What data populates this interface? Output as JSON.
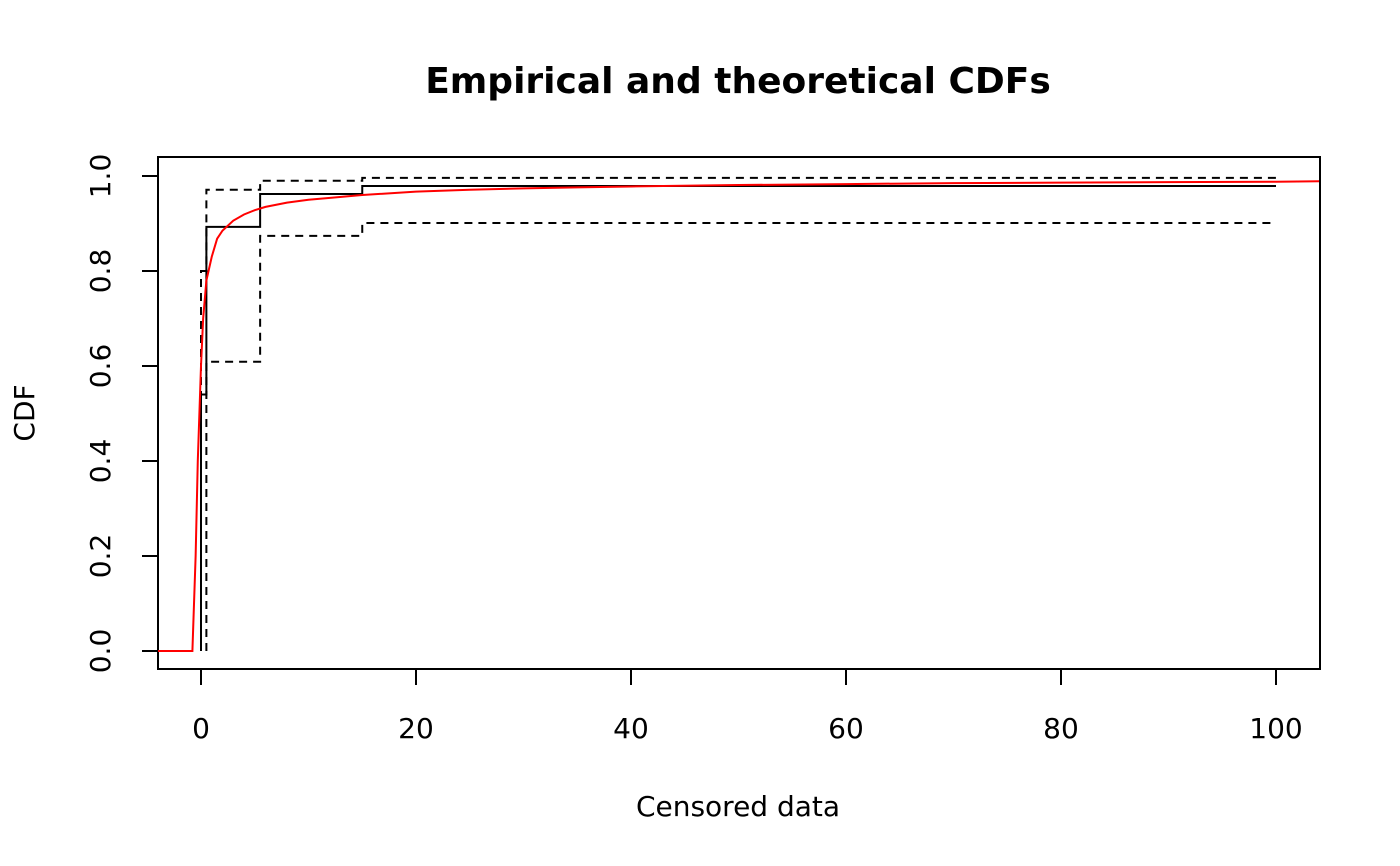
{
  "chart_data": {
    "type": "line",
    "title": "Empirical and theoretical CDFs",
    "xlabel": "Censored data",
    "ylabel": "CDF",
    "xlim": [
      -4,
      104
    ],
    "ylim": [
      -0.04,
      1.04
    ],
    "grid": false,
    "x_ticks": [
      0,
      20,
      40,
      60,
      80,
      100
    ],
    "x_tick_labels": [
      "0",
      "20",
      "40",
      "60",
      "80",
      "100"
    ],
    "y_ticks": [
      0.0,
      0.2,
      0.4,
      0.6,
      0.8,
      1.0
    ],
    "y_tick_labels": [
      "0.0",
      "0.2",
      "0.4",
      "0.6",
      "0.8",
      "1.0"
    ],
    "series": [
      {
        "style": "solid",
        "color": "#000000",
        "x": [
          0,
          0,
          0.5,
          0.5,
          5.5,
          5.5,
          15,
          15,
          100
        ],
        "y": [
          0.0,
          0.54,
          0.54,
          0.893,
          0.893,
          0.962,
          0.962,
          0.979,
          0.979
        ]
      },
      {
        "style": "dashed",
        "color": "#000000",
        "x": [
          0,
          0,
          0.5,
          0.5,
          5.5,
          5.5,
          15,
          15,
          100
        ],
        "y": [
          0.0,
          0.8,
          0.8,
          0.971,
          0.971,
          0.99,
          0.99,
          0.996,
          0.996
        ]
      },
      {
        "style": "dashed",
        "color": "#000000",
        "x": [
          0.5,
          0.5,
          5.5,
          5.5,
          15,
          15,
          100
        ],
        "y": [
          0.0,
          0.609,
          0.609,
          0.874,
          0.874,
          0.901,
          0.901
        ]
      },
      {
        "style": "solid",
        "color": "#ff0000",
        "x": [
          -4,
          -0.8,
          -0.5,
          -0.3,
          0,
          0.2,
          0.5,
          1,
          1.5,
          2,
          3,
          4,
          5,
          6,
          8,
          10,
          12,
          15,
          20,
          25,
          30,
          35,
          40,
          50,
          60,
          70,
          80,
          90,
          100,
          104
        ],
        "y": [
          0.0,
          0.0,
          0.2,
          0.4,
          0.6,
          0.7,
          0.78,
          0.83,
          0.868,
          0.885,
          0.906,
          0.919,
          0.928,
          0.935,
          0.944,
          0.95,
          0.954,
          0.96,
          0.967,
          0.971,
          0.974,
          0.976,
          0.978,
          0.981,
          0.983,
          0.985,
          0.986,
          0.987,
          0.988,
          0.989
        ]
      }
    ]
  }
}
